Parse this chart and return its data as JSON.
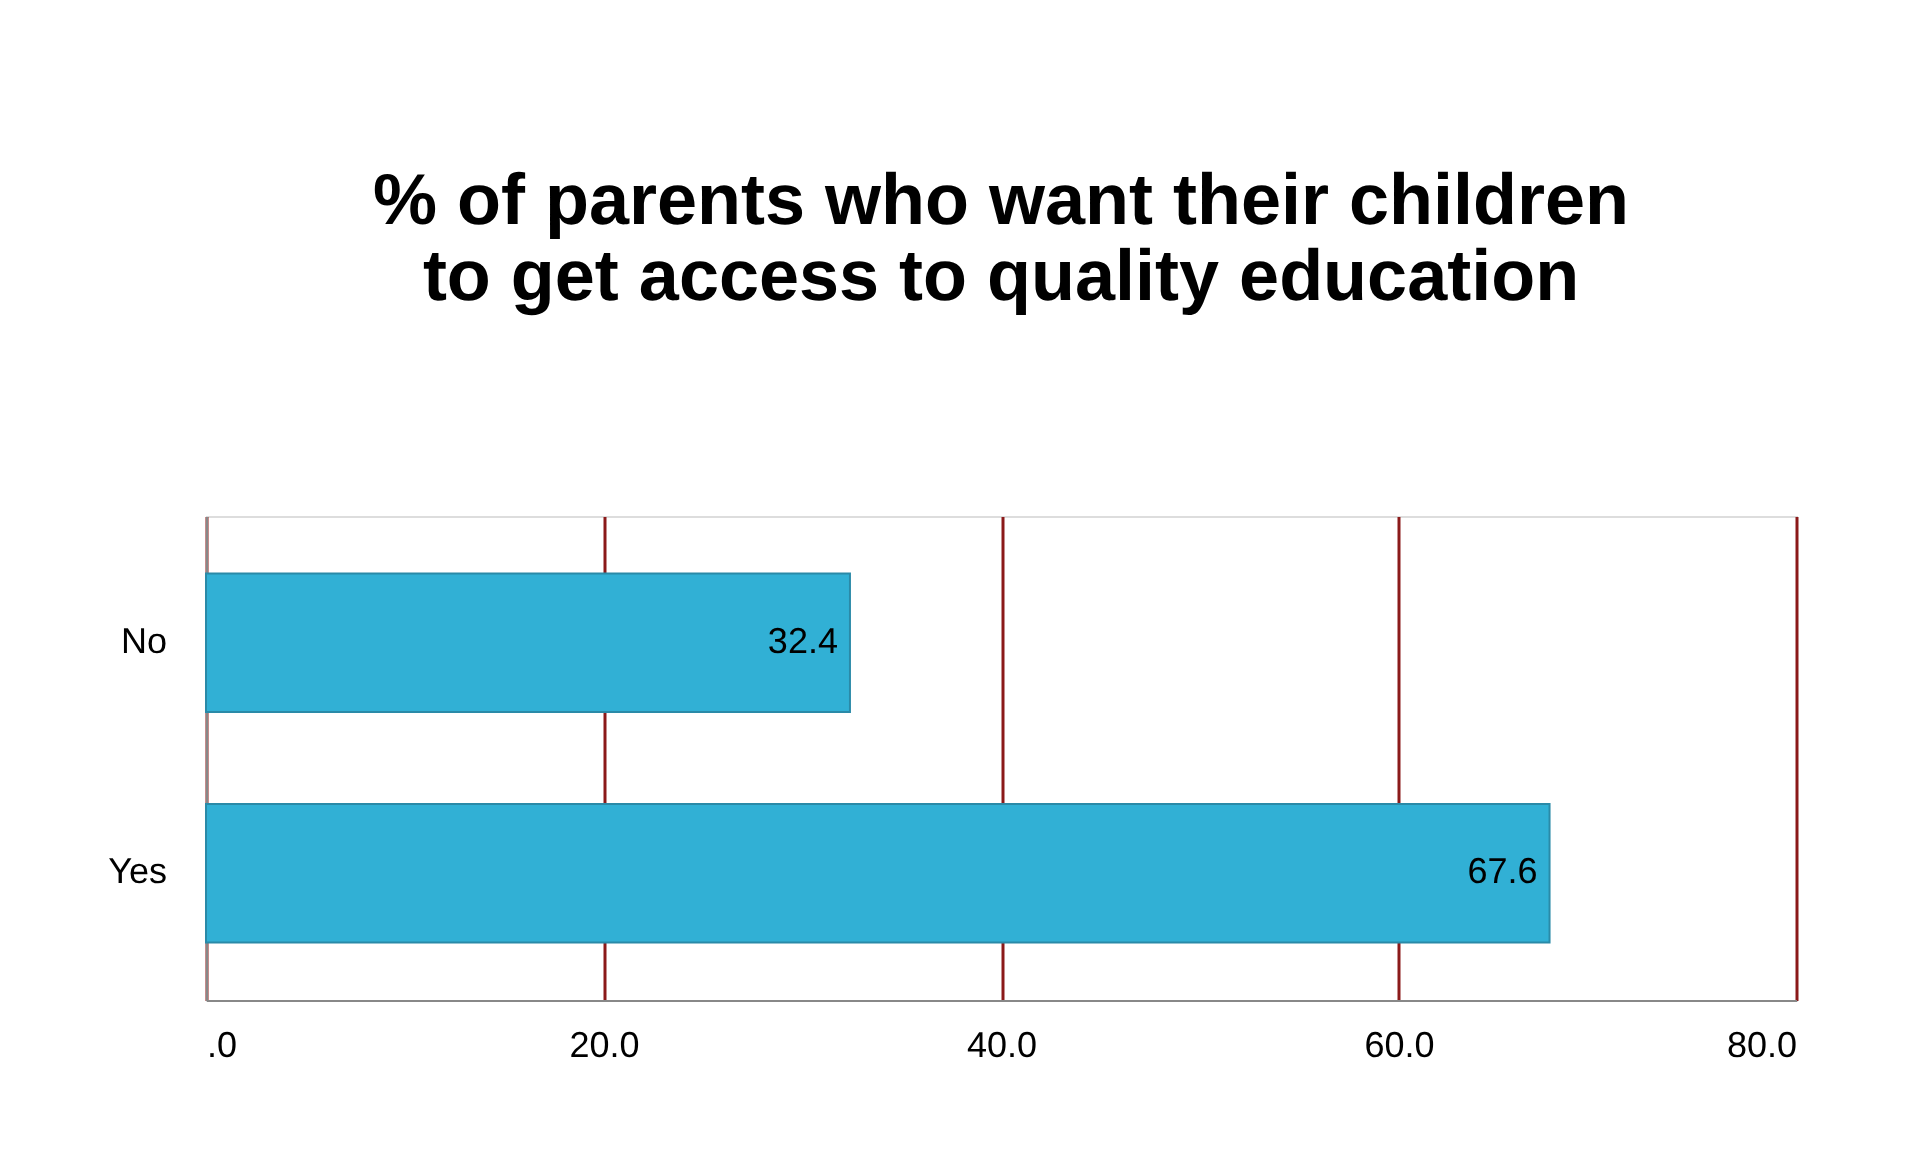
{
  "chart_data": {
    "type": "bar",
    "orientation": "horizontal",
    "title": "% of parents who want their children to get access to quality education",
    "categories": [
      "No",
      "Yes"
    ],
    "values": [
      32.4,
      67.6
    ],
    "color": "#31b0d5",
    "xlim": [
      0,
      80
    ],
    "xticks": [
      {
        "value": 0,
        "label": ".0"
      },
      {
        "value": 20,
        "label": "20.0"
      },
      {
        "value": 40,
        "label": "40.0"
      },
      {
        "value": 60,
        "label": "60.0"
      },
      {
        "value": 80,
        "label": "80.0"
      }
    ],
    "grid": "x",
    "data_labels": true
  }
}
